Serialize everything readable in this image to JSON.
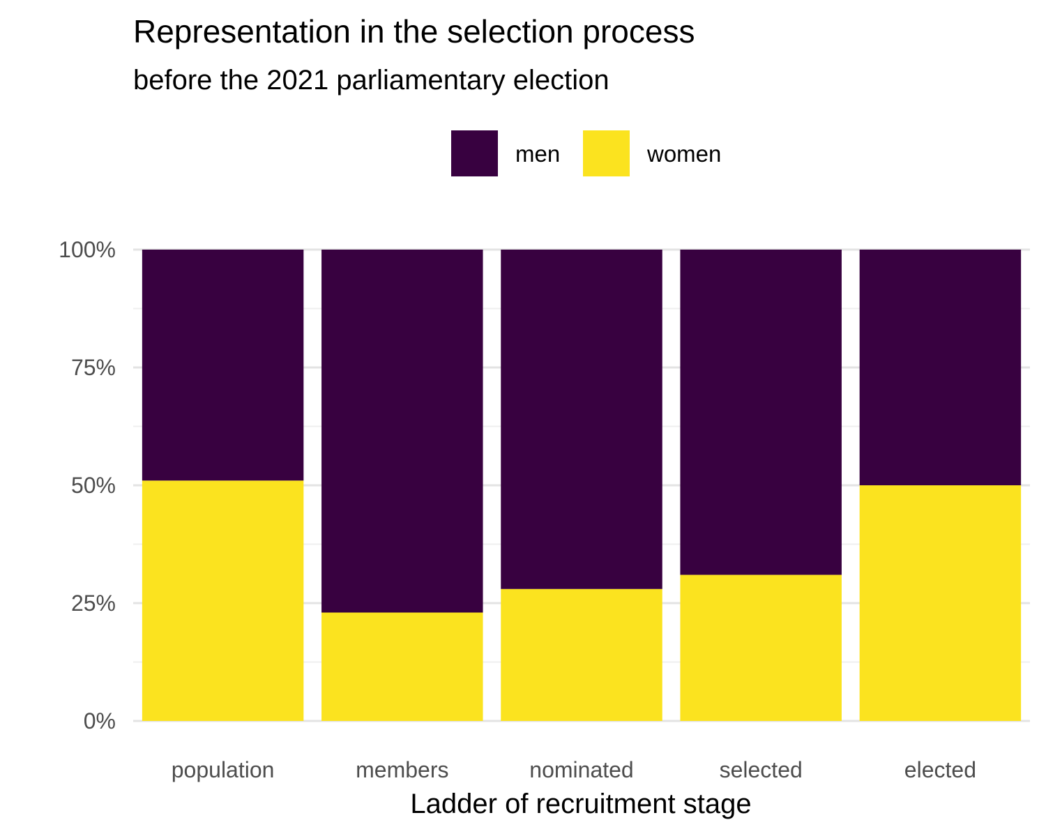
{
  "chart_data": {
    "type": "bar",
    "stacked": true,
    "title": "Representation in the selection process",
    "subtitle": "before the 2021 parliamentary election",
    "xlabel": "Ladder of recruitment stage",
    "ylabel": "",
    "categories": [
      "population",
      "members",
      "nominated",
      "selected",
      "elected"
    ],
    "series": [
      {
        "name": "men",
        "color": "#380140",
        "values": [
          49,
          77,
          72,
          69,
          50
        ]
      },
      {
        "name": "women",
        "color": "#FBE31F",
        "values": [
          51,
          23,
          28,
          31,
          50
        ]
      }
    ],
    "ylim": [
      0,
      100
    ],
    "yticks": [
      0,
      25,
      50,
      75,
      100
    ],
    "ytick_labels": [
      "0%",
      "25%",
      "50%",
      "75%",
      "100%"
    ],
    "grid": true,
    "legend_position": "top"
  },
  "legend": {
    "items": [
      {
        "label": "men",
        "color": "#380140"
      },
      {
        "label": "women",
        "color": "#FBE31F"
      }
    ]
  }
}
